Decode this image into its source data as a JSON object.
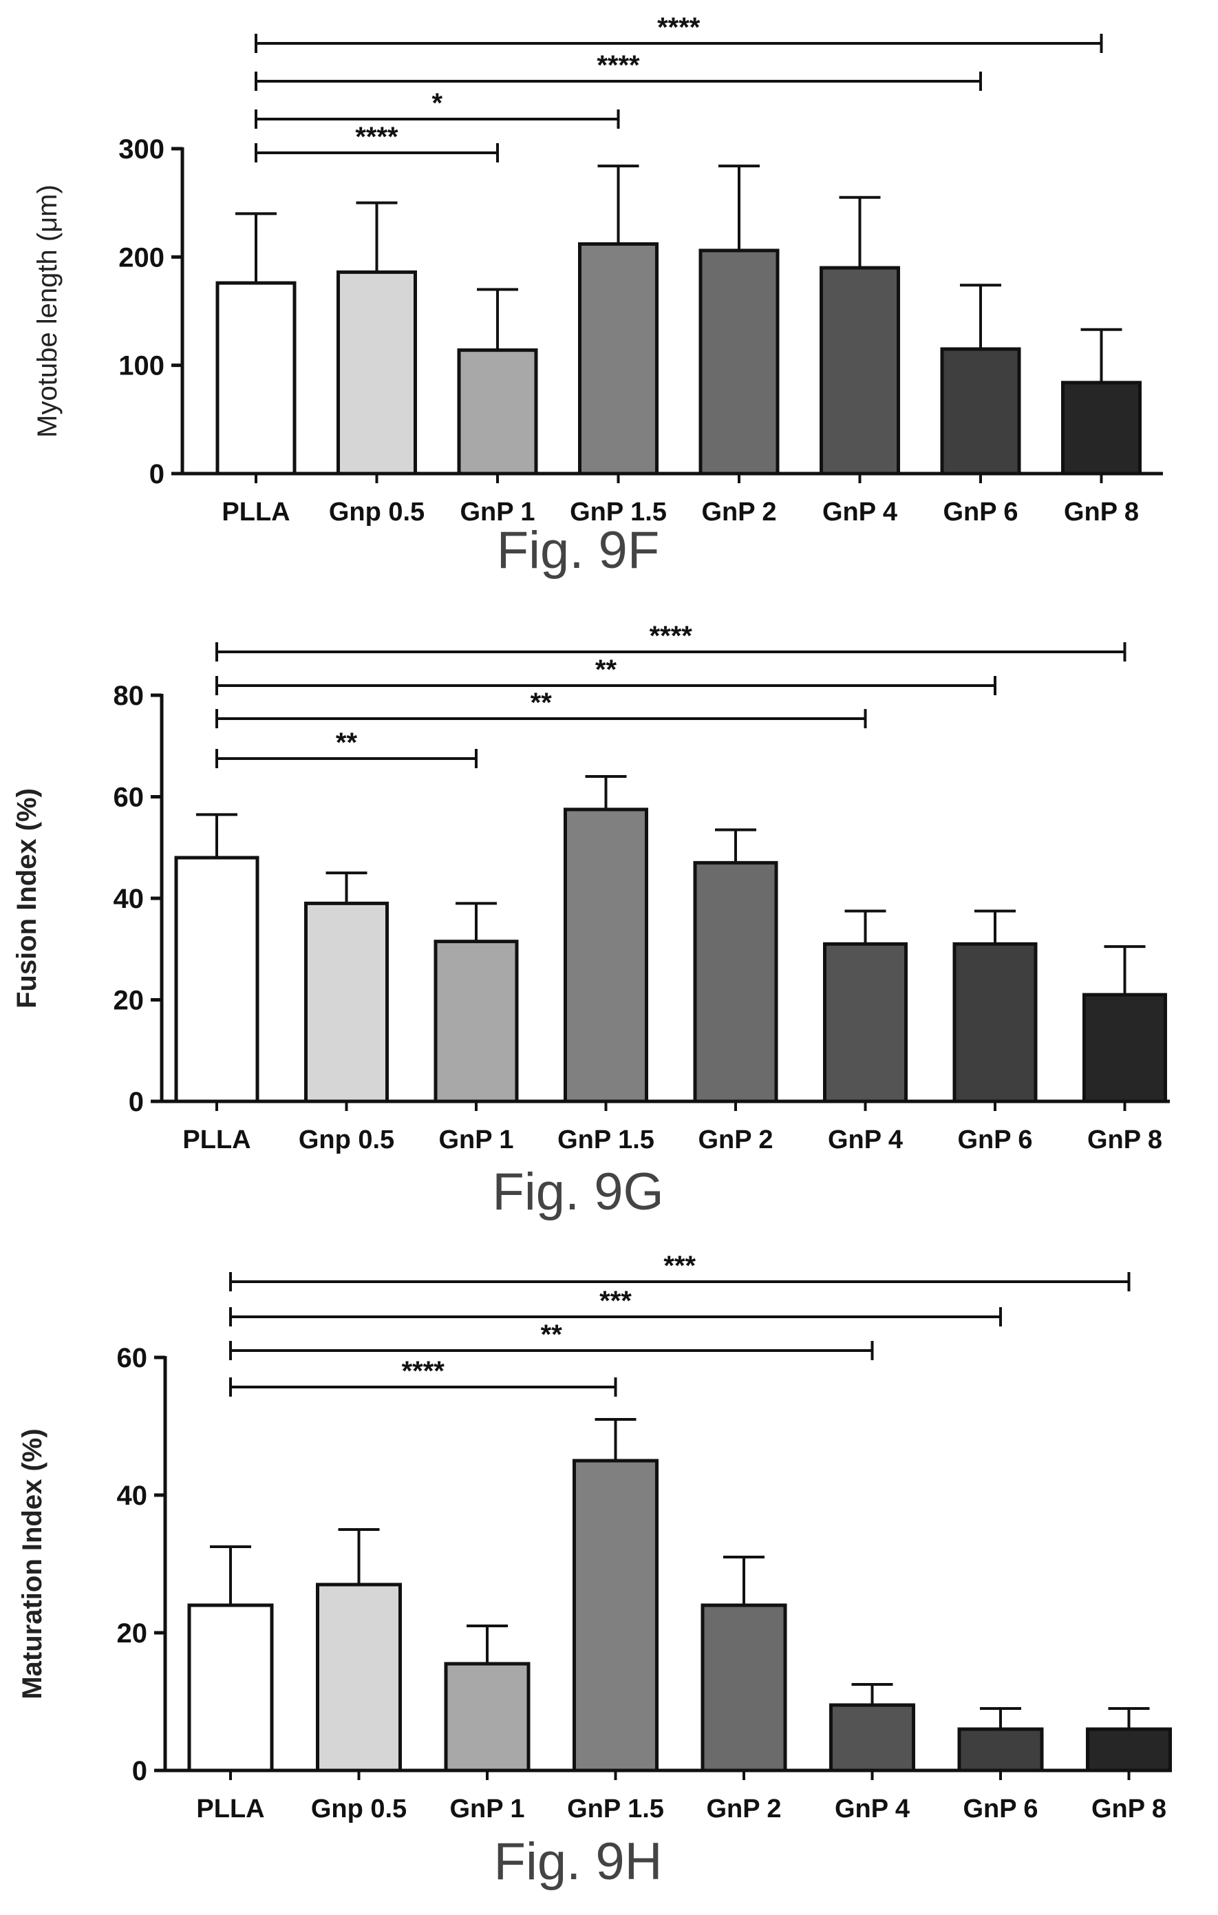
{
  "chart_data": [
    {
      "type": "bar",
      "caption": "Fig. 9F",
      "ylabel": "Myotube length (μm)",
      "xlabel": "",
      "categories": [
        "PLLA",
        "Gnp 0.5",
        "GnP 1",
        "GnP 1.5",
        "GnP 2",
        "GnP 4",
        "GnP 6",
        "GnP 8"
      ],
      "values": [
        176,
        186,
        114,
        212,
        206,
        190,
        115,
        84
      ],
      "errors": [
        64,
        64,
        56,
        72,
        78,
        65,
        59,
        49
      ],
      "ylim": [
        0,
        300
      ],
      "yticks": [
        0,
        100,
        200,
        300
      ],
      "colors": [
        "#ffffff",
        "#d6d6d6",
        "#a8a8a8",
        "#808080",
        "#6b6b6b",
        "#545454",
        "#3f3f3f",
        "#262626"
      ],
      "significance": [
        {
          "from": 0,
          "to": 2,
          "label": "****"
        },
        {
          "from": 0,
          "to": 3,
          "label": "*"
        },
        {
          "from": 0,
          "to": 6,
          "label": "****"
        },
        {
          "from": 0,
          "to": 7,
          "label": "****"
        }
      ],
      "grid": false,
      "legend": "none"
    },
    {
      "type": "bar",
      "caption": "Fig. 9G",
      "ylabel": "Fusion Index (%)",
      "xlabel": "",
      "categories": [
        "PLLA",
        "Gnp 0.5",
        "GnP 1",
        "GnP 1.5",
        "GnP 2",
        "GnP 4",
        "GnP 6",
        "GnP 8"
      ],
      "values": [
        48,
        39,
        31.5,
        57.5,
        47,
        31,
        31,
        21
      ],
      "errors": [
        8.5,
        6,
        7.5,
        6.5,
        6.5,
        6.5,
        6.5,
        9.5
      ],
      "ylim": [
        0,
        80
      ],
      "yticks": [
        0,
        20,
        40,
        60,
        80
      ],
      "colors": [
        "#ffffff",
        "#d6d6d6",
        "#a8a8a8",
        "#808080",
        "#6b6b6b",
        "#545454",
        "#3f3f3f",
        "#262626"
      ],
      "significance": [
        {
          "from": 0,
          "to": 2,
          "label": "**"
        },
        {
          "from": 0,
          "to": 5,
          "label": "**"
        },
        {
          "from": 0,
          "to": 6,
          "label": "**"
        },
        {
          "from": 0,
          "to": 7,
          "label": "****"
        }
      ],
      "grid": false,
      "legend": "none"
    },
    {
      "type": "bar",
      "caption": "Fig. 9H",
      "ylabel": "Maturation Index  (%)",
      "xlabel": "",
      "categories": [
        "PLLA",
        "Gnp 0.5",
        "GnP 1",
        "GnP 1.5",
        "GnP 2",
        "GnP 4",
        "GnP 6",
        "GnP 8"
      ],
      "values": [
        24,
        27,
        15.5,
        45,
        24,
        9.5,
        6,
        6
      ],
      "errors": [
        8.5,
        8,
        5.5,
        6,
        7,
        3,
        3,
        3
      ],
      "ylim": [
        0,
        60
      ],
      "yticks": [
        0,
        20,
        40,
        60
      ],
      "colors": [
        "#ffffff",
        "#d6d6d6",
        "#a8a8a8",
        "#808080",
        "#6b6b6b",
        "#545454",
        "#3f3f3f",
        "#262626"
      ],
      "significance": [
        {
          "from": 0,
          "to": 3,
          "label": "****"
        },
        {
          "from": 0,
          "to": 5,
          "label": "**"
        },
        {
          "from": 0,
          "to": 6,
          "label": "***"
        },
        {
          "from": 0,
          "to": 7,
          "label": "***"
        }
      ],
      "grid": false,
      "legend": "none"
    }
  ]
}
